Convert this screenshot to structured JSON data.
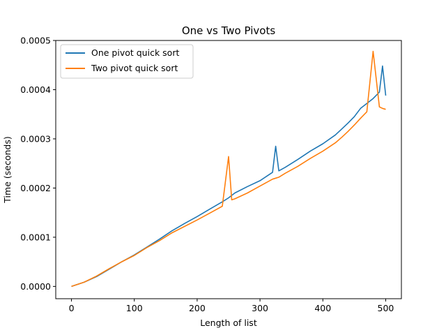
{
  "chart_data": {
    "type": "line",
    "title": "One vs Two Pivots",
    "xlabel": "Length of list",
    "ylabel": "Time (seconds)",
    "xlim": [
      -25,
      525
    ],
    "ylim": [
      -2.5e-05,
      0.0005
    ],
    "xticks": [
      0,
      100,
      200,
      300,
      400,
      500
    ],
    "xtick_labels": [
      "0",
      "100",
      "200",
      "300",
      "400",
      "500"
    ],
    "yticks": [
      0,
      0.0001,
      0.0002,
      0.0003,
      0.0004,
      0.0005
    ],
    "ytick_labels": [
      "0.0000",
      "0.0001",
      "0.0002",
      "0.0003",
      "0.0004",
      "0.0005"
    ],
    "grid": false,
    "legend_position": "top-left",
    "x": [
      0,
      20,
      40,
      60,
      80,
      100,
      120,
      140,
      160,
      180,
      200,
      220,
      240,
      250,
      255,
      260,
      280,
      300,
      320,
      325,
      330,
      340,
      360,
      380,
      400,
      420,
      430,
      440,
      450,
      460,
      470,
      480,
      490,
      495,
      500
    ],
    "series": [
      {
        "name": "One pivot quick sort",
        "color": "#1f77b4",
        "values": [
          0.0,
          8.5e-06,
          2e-05,
          3.5e-05,
          5e-05,
          6.4e-05,
          8e-05,
          9.6e-05,
          0.000113,
          0.000128,
          0.000142,
          0.000157,
          0.000172,
          0.00018,
          0.000185,
          0.00019,
          0.000203,
          0.000215,
          0.000232,
          0.000285,
          0.000235,
          0.000242,
          0.000258,
          0.000275,
          0.00029,
          0.000308,
          0.00032,
          0.000332,
          0.000345,
          0.000362,
          0.000372,
          0.000382,
          0.000395,
          0.000448,
          0.000388
        ]
      },
      {
        "name": "Two pivot quick sort",
        "color": "#ff7f0e",
        "values": [
          0.0,
          8.5e-06,
          2.1e-05,
          3.6e-05,
          5e-05,
          6.3e-05,
          7.9e-05,
          9.3e-05,
          0.000109,
          0.000122,
          0.000135,
          0.000149,
          0.000163,
          0.000264,
          0.000176,
          0.000178,
          0.00019,
          0.000204,
          0.000218,
          0.00022,
          0.000222,
          0.00023,
          0.000244,
          0.00026,
          0.000275,
          0.000292,
          0.000303,
          0.000315,
          0.000328,
          0.000342,
          0.000355,
          0.000478,
          0.000365,
          0.000362,
          0.00036
        ]
      }
    ]
  }
}
